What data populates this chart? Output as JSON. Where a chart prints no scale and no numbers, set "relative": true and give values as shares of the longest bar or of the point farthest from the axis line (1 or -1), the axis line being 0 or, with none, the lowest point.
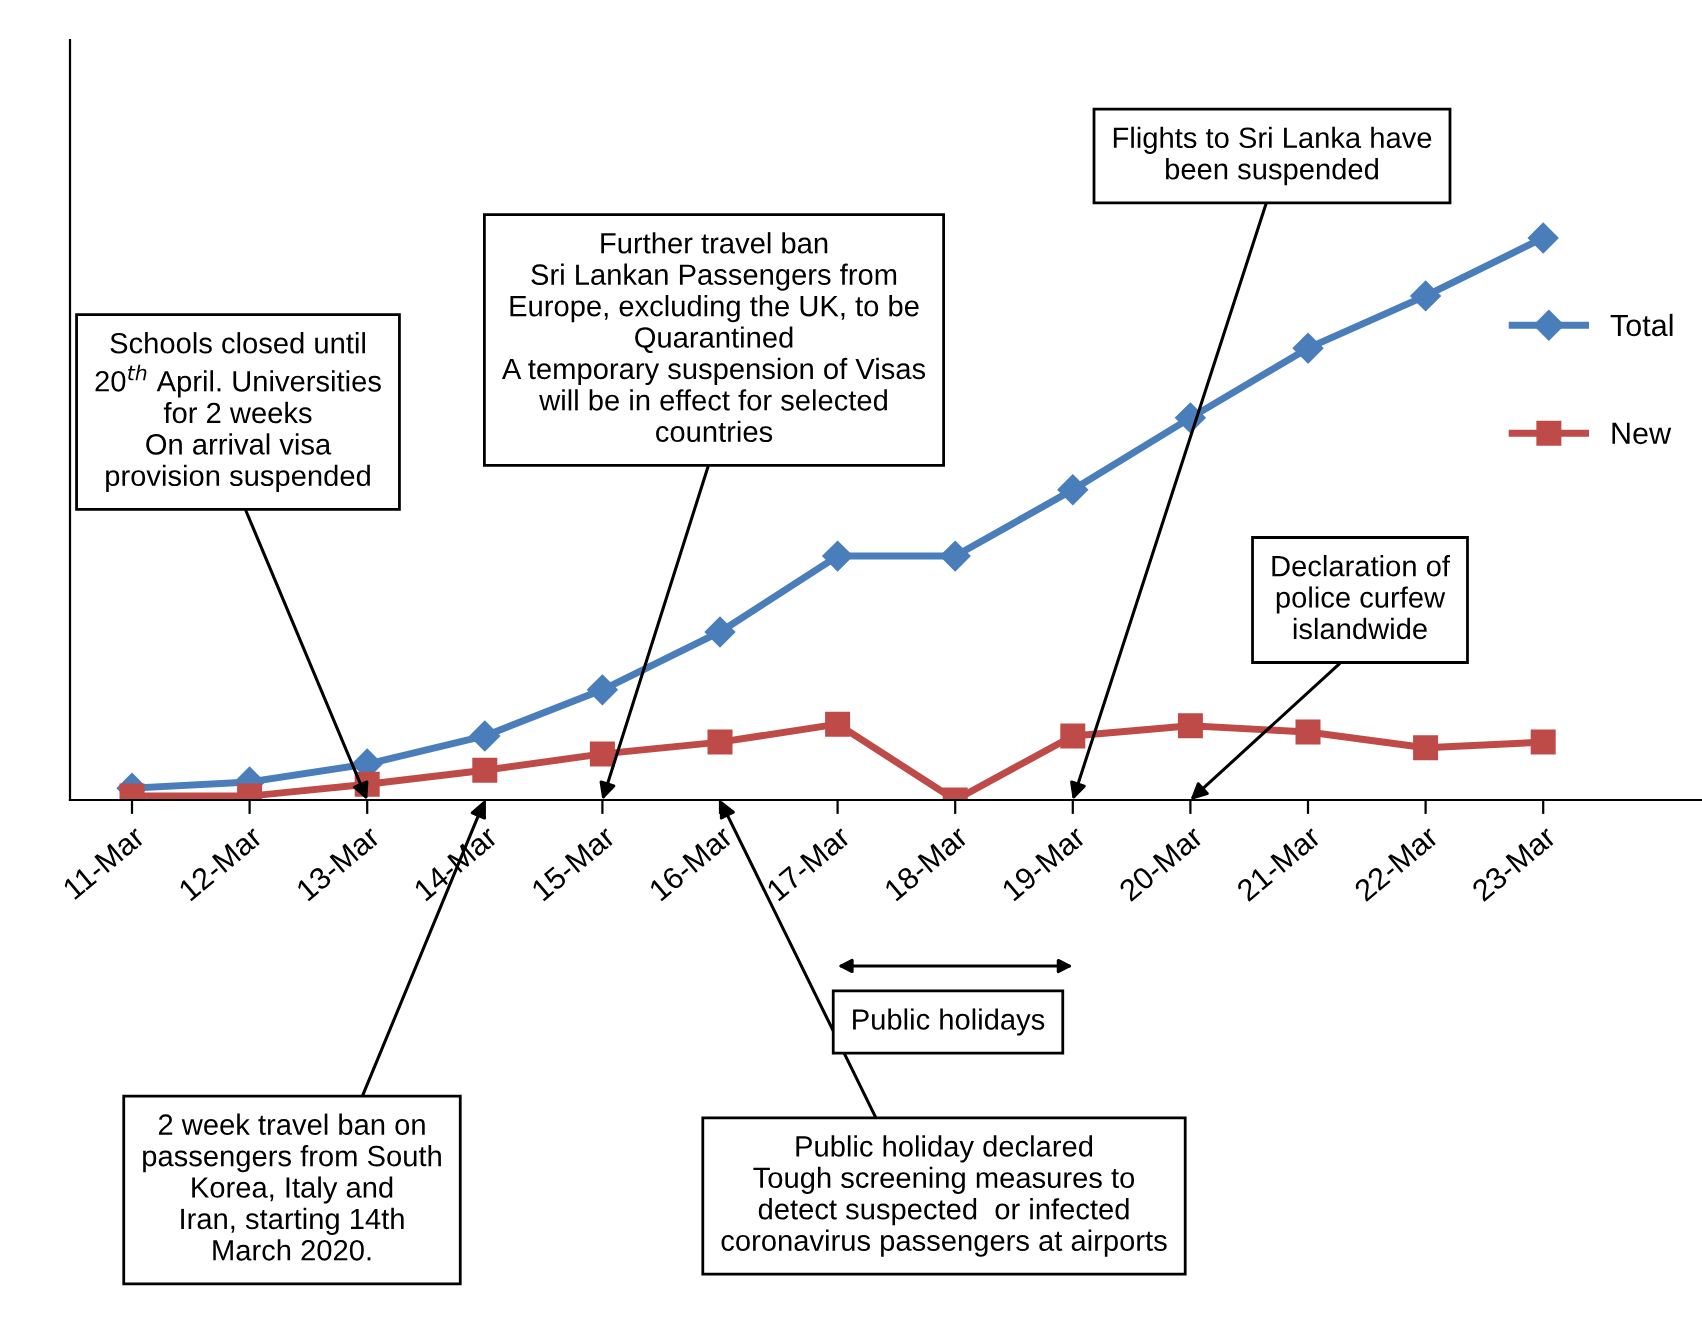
{
  "chart_data": {
    "type": "line",
    "relative": true,
    "legend": "right",
    "grid": false,
    "categories": [
      "11-Mar",
      "12-Mar",
      "13-Mar",
      "14-Mar",
      "15-Mar",
      "16-Mar",
      "17-Mar",
      "18-Mar",
      "19-Mar",
      "20-Mar",
      "21-Mar",
      "22-Mar",
      "23-Mar"
    ],
    "series": [
      {
        "name": "Total",
        "color": "#4a7ebb",
        "marker": "diamond",
        "values": [
          0.021,
          0.032,
          0.064,
          0.114,
          0.196,
          0.299,
          0.434,
          0.434,
          0.552,
          0.68,
          0.804,
          0.897,
          1
        ]
      },
      {
        "name": "New",
        "color": "#be4b48",
        "marker": "square",
        "values": [
          0.007,
          0.007,
          0.028,
          0.053,
          0.082,
          0.103,
          0.135,
          0,
          0.114,
          0.132,
          0.121,
          0.093,
          0.103
        ]
      }
    ],
    "annotations": [
      "Schools closed until\n20$^{th}$ April. Universities\nfor 2 weeks\nOn arrival visa\nprovision suspended",
      "Further travel ban\nSri Lankan Passengers from\nEurope, excluding the UK, to be\nQuarantined\nA temporary suspension of Visas\nwill be in effect for selected\ncountries",
      "Flights to Sri Lanka have\nbeen suspended",
      "Declaration of\npolice curfew\nislandwide",
      "2 week travel ban on\npassengers from South\nKorea, Italy and\nIran, starting 14th\nMarch 2020.",
      "Public holiday declared\nTough screening measures to\ndetect suspected  or infected\ncoronavirus passengers at airports",
      "Public holidays"
    ]
  }
}
